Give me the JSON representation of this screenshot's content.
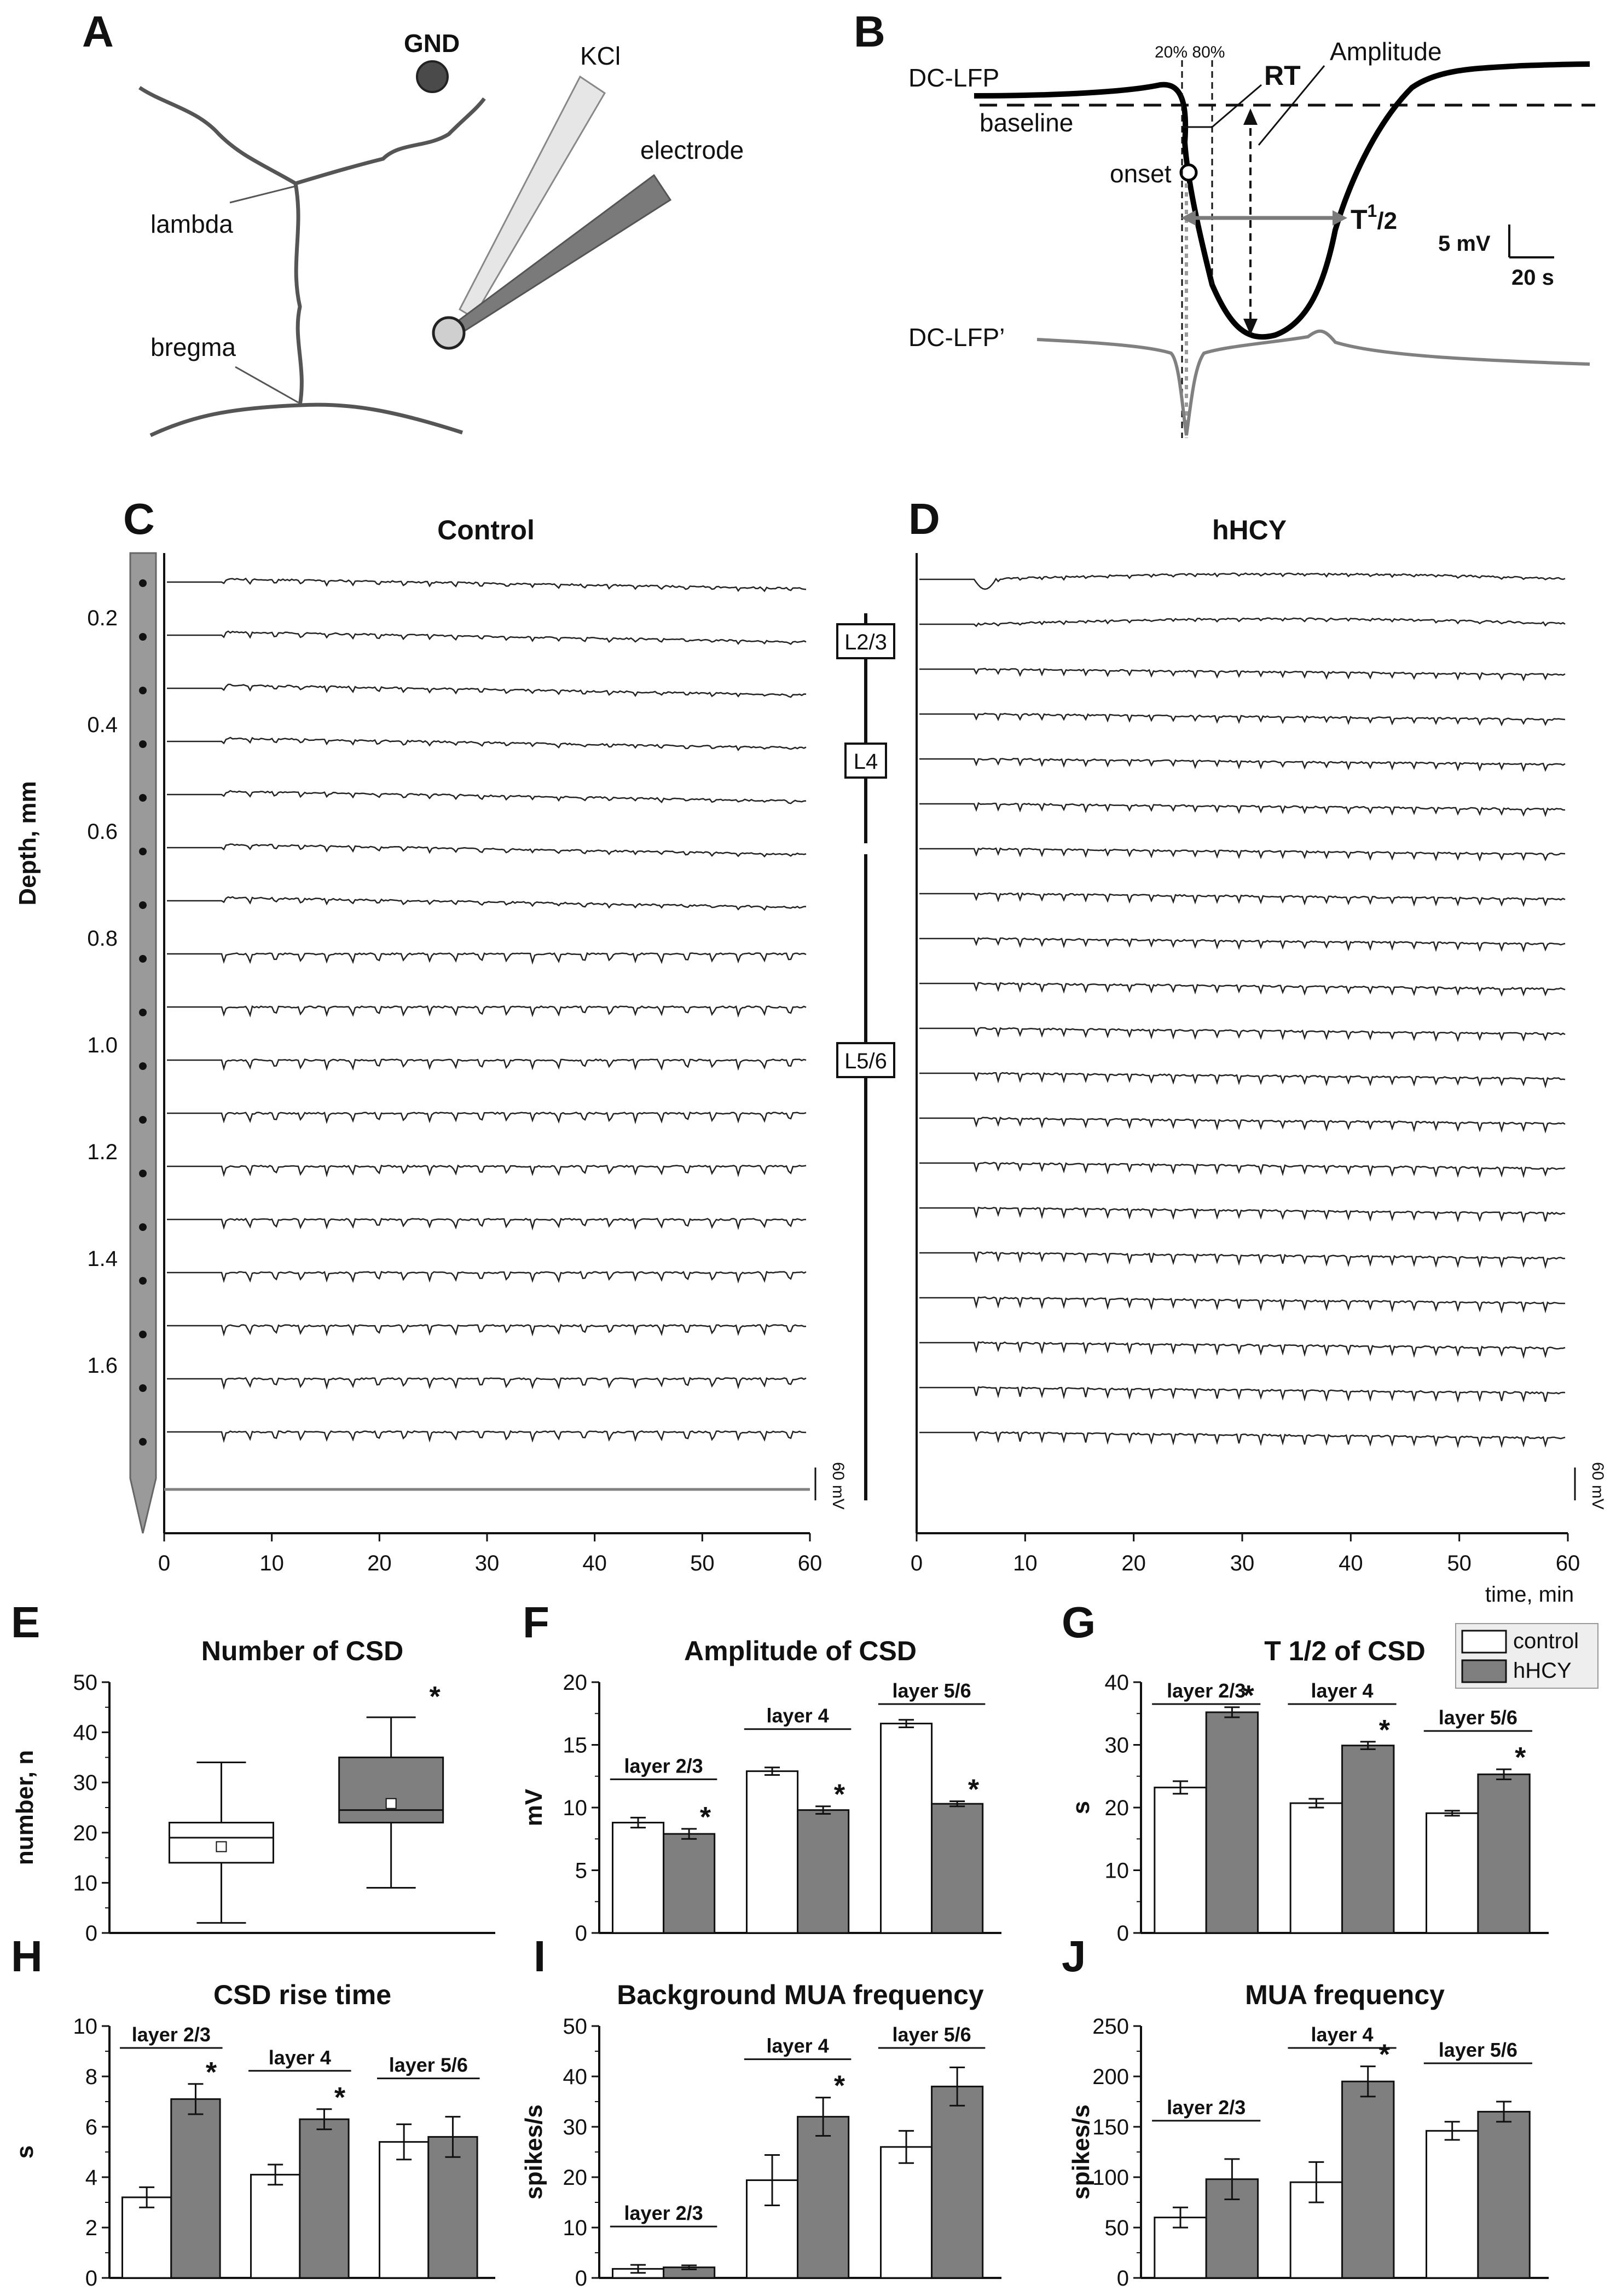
{
  "colors": {
    "control": "#ffffff",
    "hhcy": "#7f7f7f",
    "trace": "#222222",
    "probe": "#9a9a9a"
  },
  "panel_A": {
    "letter": "A",
    "labels": {
      "gnd": "GND",
      "kcl": "KCl",
      "electrode": "electrode",
      "lambda": "lambda",
      "bregma": "bregma"
    }
  },
  "panel_B": {
    "letter": "B",
    "labels": {
      "dclfp": "DC-LFP",
      "baseline": "baseline",
      "pct": "20% 80%",
      "rt": "RT",
      "amplitude": "Amplitude",
      "onset": "onset",
      "t_main": "T",
      "t_sup": "1",
      "t_sub": "/2",
      "scale_mv": "5 mV",
      "scale_s": "20 s",
      "deriv": "DC-LFP’"
    }
  },
  "panels_CD": {
    "C": {
      "letter": "C",
      "title": "Control"
    },
    "D": {
      "letter": "D",
      "title": "hHCY"
    },
    "depth_label": "Depth, mm",
    "depth_ticks": [
      "0.2",
      "0.4",
      "0.6",
      "0.8",
      "1.0",
      "1.2",
      "1.4",
      "1.6"
    ],
    "time_ticks": [
      "0",
      "10",
      "20",
      "30",
      "40",
      "50",
      "60"
    ],
    "time_label": "time, min",
    "scale": "60 mV",
    "layers": [
      "L2/3",
      "L4",
      "L5/6"
    ]
  },
  "chart_data": [
    {
      "id": "E",
      "type": "box",
      "title": "Number of CSD",
      "xlabel": "",
      "ylabel": "number, n",
      "ylim": [
        0,
        50
      ],
      "yticks": [
        "0",
        "10",
        "20",
        "30",
        "40",
        "50"
      ],
      "boxes": [
        {
          "group": "control",
          "min": 2,
          "q1": 14,
          "median": 19,
          "mean": 17.2,
          "q3": 22,
          "max": 34,
          "sig": ""
        },
        {
          "group": "hHCY",
          "min": 9,
          "q1": 22,
          "median": 24.5,
          "mean": 25.8,
          "q3": 35,
          "max": 43,
          "sig": "*"
        }
      ]
    },
    {
      "id": "F",
      "type": "bar",
      "title": "Amplitude of CSD",
      "ylabel": "mV",
      "ylim": [
        0,
        20
      ],
      "yticks": [
        "0",
        "5",
        "10",
        "15",
        "20"
      ],
      "categories": [
        "layer 2/3",
        "layer 4",
        "layer 5/6"
      ],
      "series": [
        {
          "name": "control",
          "values": [
            8.8,
            12.9,
            16.7
          ],
          "errors": [
            0.4,
            0.3,
            0.3
          ]
        },
        {
          "name": "hHCY",
          "values": [
            7.9,
            9.8,
            10.3
          ],
          "errors": [
            0.4,
            0.3,
            0.2
          ],
          "sig": [
            "*",
            "*",
            "*"
          ]
        }
      ]
    },
    {
      "id": "G",
      "type": "bar",
      "title": "T 1/2 of CSD",
      "ylabel": "s",
      "ylim": [
        0,
        40
      ],
      "yticks": [
        "0",
        "10",
        "20",
        "30",
        "40"
      ],
      "categories": [
        "layer 2/3",
        "layer 4",
        "layer 5/6"
      ],
      "legend": [
        "control",
        "hHCY"
      ],
      "series": [
        {
          "name": "control",
          "values": [
            23.2,
            20.7,
            19.1
          ],
          "errors": [
            1.0,
            0.7,
            0.4
          ]
        },
        {
          "name": "hHCY",
          "values": [
            35.2,
            29.9,
            25.3
          ],
          "errors": [
            0.8,
            0.6,
            0.8
          ],
          "sig": [
            "*",
            "*",
            "*"
          ]
        }
      ]
    },
    {
      "id": "H",
      "type": "bar",
      "title": "CSD rise time",
      "ylabel": "s",
      "ylim": [
        0,
        10
      ],
      "yticks": [
        "0",
        "2",
        "4",
        "6",
        "8",
        "10"
      ],
      "categories": [
        "layer 2/3",
        "layer 4",
        "layer 5/6"
      ],
      "series": [
        {
          "name": "control",
          "values": [
            3.2,
            4.1,
            5.4
          ],
          "errors": [
            0.4,
            0.4,
            0.7
          ]
        },
        {
          "name": "hHCY",
          "values": [
            7.1,
            6.3,
            5.6
          ],
          "errors": [
            0.6,
            0.4,
            0.8
          ],
          "sig": [
            "*",
            "*",
            ""
          ]
        }
      ]
    },
    {
      "id": "I",
      "type": "bar",
      "title": "Background MUA frequency",
      "ylabel": "spikes/s",
      "ylim": [
        0,
        50
      ],
      "yticks": [
        "0",
        "10",
        "20",
        "30",
        "40",
        "50"
      ],
      "categories": [
        "layer 2/3",
        "layer 4",
        "layer 5/6"
      ],
      "series": [
        {
          "name": "control",
          "values": [
            1.8,
            19.4,
            26.0
          ],
          "errors": [
            0.8,
            5.0,
            3.2
          ]
        },
        {
          "name": "hHCY",
          "values": [
            2.1,
            32.0,
            38.0
          ],
          "errors": [
            0.4,
            3.8,
            3.8
          ],
          "sig": [
            "",
            "*",
            ""
          ]
        }
      ]
    },
    {
      "id": "J",
      "type": "bar",
      "title": "MUA  frequency",
      "ylabel": "spikes/s",
      "ylim": [
        0,
        250
      ],
      "yticks": [
        "0",
        "50",
        "100",
        "150",
        "200",
        "250"
      ],
      "categories": [
        "layer 2/3",
        "layer 4",
        "layer 5/6"
      ],
      "series": [
        {
          "name": "control",
          "values": [
            60,
            95,
            146
          ],
          "errors": [
            10,
            20,
            9
          ]
        },
        {
          "name": "hHCY",
          "values": [
            98,
            195,
            165
          ],
          "errors": [
            20,
            15,
            10
          ],
          "sig": [
            "",
            "*",
            ""
          ]
        }
      ]
    }
  ]
}
